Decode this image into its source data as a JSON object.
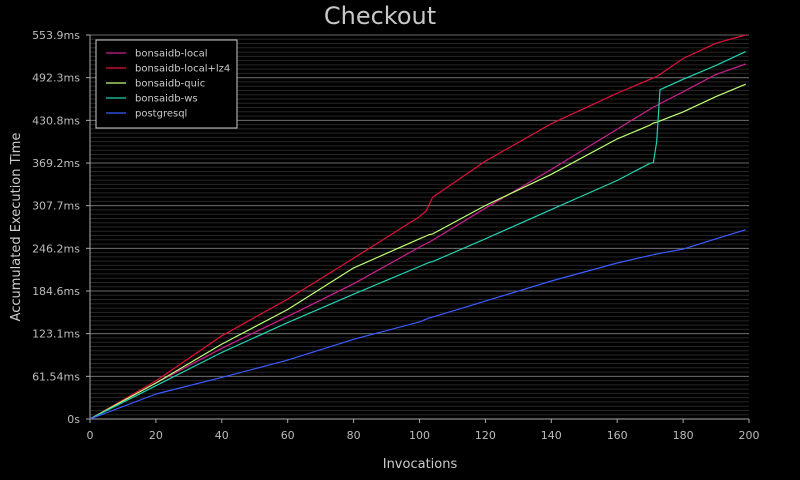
{
  "chart_data": {
    "type": "line",
    "title": "Checkout",
    "xlabel": "Invocations",
    "ylabel": "Accumulated Execution Time",
    "xlim": [
      0,
      200
    ],
    "ylim": [
      0,
      553.9
    ],
    "x_ticks": [
      0,
      20,
      40,
      60,
      80,
      100,
      120,
      140,
      160,
      180,
      200
    ],
    "y_ticks": [
      {
        "value": 0,
        "label": "0s"
      },
      {
        "value": 61.54,
        "label": "61.54ms"
      },
      {
        "value": 123.1,
        "label": "123.1ms"
      },
      {
        "value": 184.6,
        "label": "184.6ms"
      },
      {
        "value": 246.2,
        "label": "246.2ms"
      },
      {
        "value": 307.7,
        "label": "307.7ms"
      },
      {
        "value": 369.2,
        "label": "369.2ms"
      },
      {
        "value": 430.8,
        "label": "430.8ms"
      },
      {
        "value": 492.3,
        "label": "492.3ms"
      },
      {
        "value": 553.9,
        "label": "553.9ms"
      }
    ],
    "grid": true,
    "legend_position": "top-left",
    "x": [
      0,
      20,
      40,
      60,
      80,
      100,
      102,
      103,
      104,
      120,
      140,
      160,
      170,
      171,
      172,
      173,
      180,
      190,
      199
    ],
    "series": [
      {
        "name": "bonsaidb-local",
        "color": "#cc1f8f",
        "values": [
          0,
          52,
          102,
          148,
          195,
          248,
          253,
          255,
          258,
          304,
          360,
          418,
          447,
          450,
          452,
          455,
          472,
          497,
          512
        ]
      },
      {
        "name": "bonsaidb-local+lz4",
        "color": "#e0103a",
        "values": [
          0,
          55,
          120,
          173,
          232,
          292,
          300,
          310,
          320,
          372,
          426,
          470,
          490,
          492,
          494,
          497,
          520,
          542,
          553.9
        ]
      },
      {
        "name": "bonsaidb-quic",
        "color": "#c0ff70",
        "values": [
          0,
          52,
          108,
          158,
          218,
          260,
          264,
          266,
          267,
          308,
          353,
          404,
          424,
          427,
          428,
          430,
          443,
          465,
          483
        ]
      },
      {
        "name": "bonsaidb-ws",
        "color": "#21d1b0",
        "values": [
          0,
          48,
          96,
          139,
          180,
          220,
          224,
          226,
          227,
          260,
          302,
          344,
          369,
          370,
          400,
          475,
          490,
          510,
          530
        ]
      },
      {
        "name": "postgresql",
        "color": "#3a5bff",
        "values": [
          0,
          36,
          60,
          85,
          115,
          140,
          144,
          146,
          147,
          170,
          199,
          225,
          236,
          237,
          238,
          239,
          245,
          260,
          273
        ]
      }
    ]
  }
}
